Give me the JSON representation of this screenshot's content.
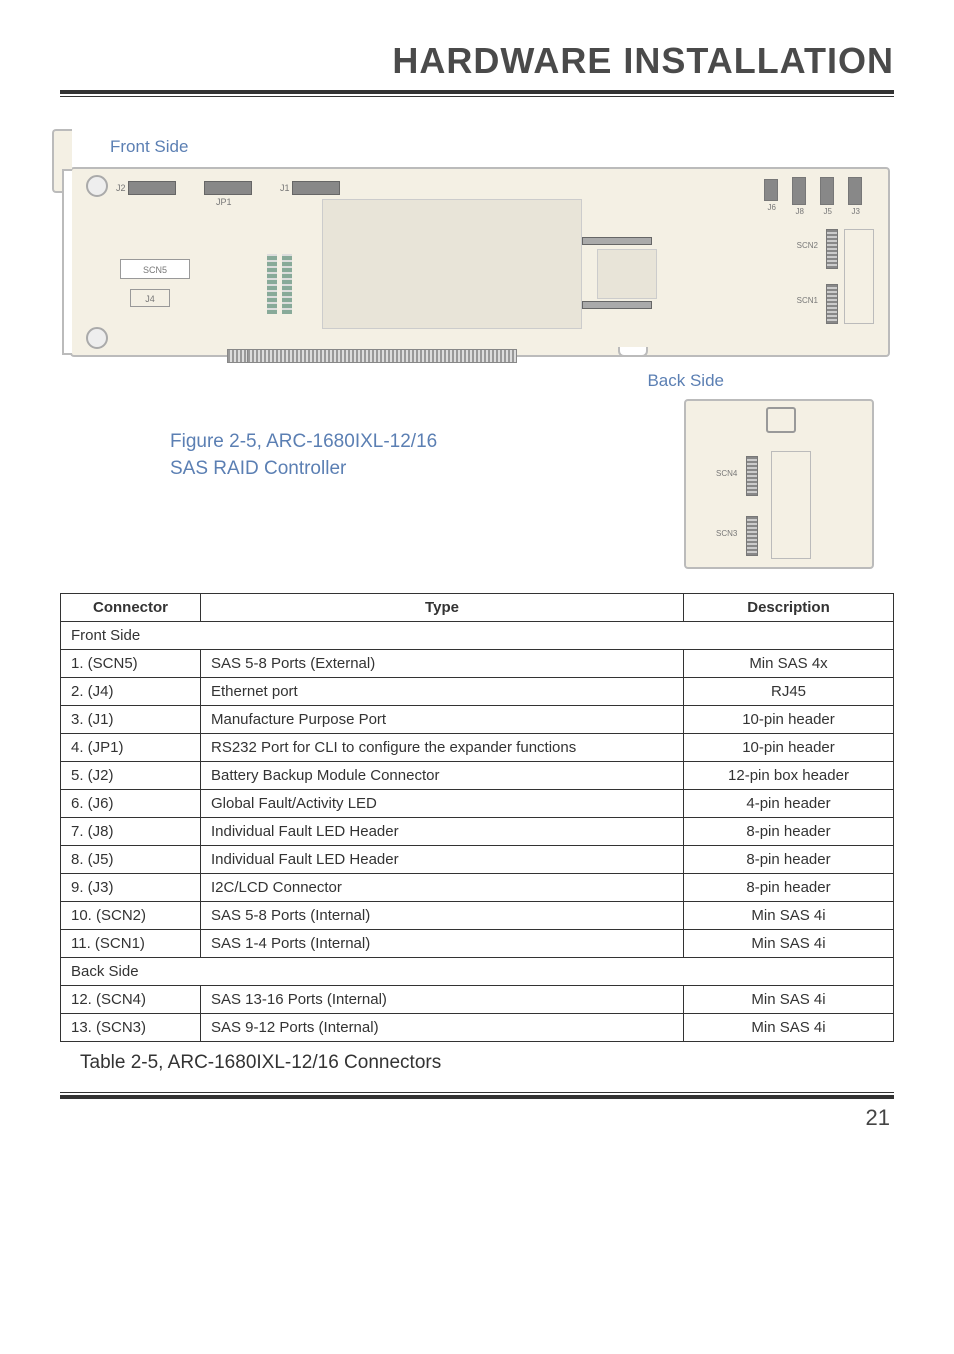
{
  "page_title": "HARDWARE INSTALLATION",
  "labels": {
    "front_side": "Front Side",
    "back_side": "Back Side"
  },
  "figure": {
    "caption_line1": "Figure 2-5, ARC-1680IXL-12/16",
    "caption_line2": "SAS RAID Controller"
  },
  "pcb_front": {
    "j2": "J2",
    "jp1": "JP1",
    "j1": "J1",
    "scn5": "SCN5",
    "j4": "J4",
    "j6": "J6",
    "j8": "J8",
    "j5": "J5",
    "j3": "J3",
    "scn2": "SCN2",
    "scn1": "SCN1"
  },
  "pcb_back": {
    "scn4": "SCN4",
    "scn3": "SCN3"
  },
  "table": {
    "headers": {
      "c1": "Connector",
      "c2": "Type",
      "c3": "Description"
    },
    "section_front": "Front Side",
    "section_back": "Back Side",
    "rows_front": [
      {
        "c1": "1. (SCN5)",
        "c2": "SAS 5-8 Ports (External)",
        "c3": "Min SAS 4x"
      },
      {
        "c1": "2. (J4)",
        "c2": "Ethernet port",
        "c3": "RJ45"
      },
      {
        "c1": "3. (J1)",
        "c2": "Manufacture Purpose Port",
        "c3": "10-pin header"
      },
      {
        "c1": "4. (JP1)",
        "c2": "RS232 Port for CLI to configure the expander functions",
        "c3": "10-pin header"
      },
      {
        "c1": "5. (J2)",
        "c2": "Battery Backup Module Connector",
        "c3": "12-pin box header"
      },
      {
        "c1": "6. (J6)",
        "c2": "Global Fault/Activity LED",
        "c3": "4-pin header"
      },
      {
        "c1": "7. (J8)",
        "c2": "Individual Fault LED Header",
        "c3": "8-pin header"
      },
      {
        "c1": "8. (J5)",
        "c2": "Individual Fault LED Header",
        "c3": "8-pin header"
      },
      {
        "c1": "9. (J3)",
        "c2": "I2C/LCD Connector",
        "c3": "8-pin header"
      },
      {
        "c1": "10. (SCN2)",
        "c2": "SAS 5-8 Ports (Internal)",
        "c3": "Min SAS 4i"
      },
      {
        "c1": "11. (SCN1)",
        "c2": "SAS 1-4 Ports (Internal)",
        "c3": "Min SAS 4i"
      }
    ],
    "rows_back": [
      {
        "c1": "12. (SCN4)",
        "c2": "SAS 13-16 Ports (Internal)",
        "c3": "Min SAS 4i"
      },
      {
        "c1": "13. (SCN3)",
        "c2": "SAS 9-12 Ports (Internal)",
        "c3": "Min SAS 4i"
      }
    ],
    "caption": "Table 2-5, ARC-1680IXL-12/16 Connectors"
  },
  "page_number": "21",
  "colors": {
    "label_blue": "#5b7fb3",
    "pcb_bg": "#f4f0e4",
    "border": "#333333"
  }
}
